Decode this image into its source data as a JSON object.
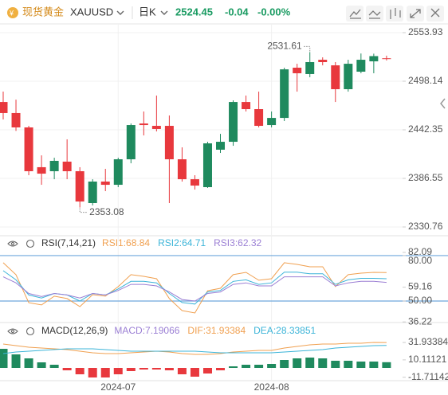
{
  "header": {
    "name": "现货黄金",
    "symbol": "XAUUSD",
    "period": "日K",
    "price": "2524.45",
    "change": "-0.04",
    "change_pct": "-0.00%"
  },
  "chart_data": [
    {
      "type": "candlestick",
      "categories": [
        null,
        null,
        null,
        null,
        null,
        null,
        null,
        null,
        null,
        "2024-07",
        null,
        null,
        null,
        null,
        null,
        null,
        null,
        null,
        null,
        null,
        null,
        "2024-08",
        null,
        null,
        null,
        null,
        null,
        null,
        null,
        null,
        null
      ],
      "open": [
        2474.3,
        2461.6,
        2445.1,
        2399.4,
        2394.8,
        2405.8,
        2394.8,
        2358.2,
        2382.9,
        2379.2,
        2408.5,
        2449.6,
        2446.9,
        2446.9,
        2408.5,
        2385.6,
        2376.5,
        2419.5,
        2428.6,
        2474.3,
        2466.1,
        2447.8,
        2456.0,
        2513.7,
        2506.4,
        2522.8,
        2516.4,
        2489.0,
        2509.1,
        2521.0,
        2524.49
      ],
      "high": [
        2486.2,
        2477.0,
        2446.9,
        2413.0,
        2410.3,
        2431.4,
        2399.4,
        2385.6,
        2397.5,
        2410.3,
        2449.6,
        2463.4,
        2481.7,
        2458.8,
        2422.2,
        2390.2,
        2428.6,
        2437.7,
        2476.2,
        2481.7,
        2486.2,
        2463.4,
        2513.7,
        2518.2,
        2531.61,
        2525.6,
        2520.1,
        2522.8,
        2530.0,
        2529.8,
        2527.5
      ],
      "low": [
        2454.2,
        2441.1,
        2390.2,
        2379.2,
        2385.6,
        2385.6,
        2353.08,
        2355.5,
        2371.9,
        2376.5,
        2403.9,
        2435.9,
        2440.5,
        2358.2,
        2382.9,
        2373.7,
        2375.6,
        2415.8,
        2424.0,
        2463.4,
        2445.1,
        2445.1,
        2452.4,
        2486.2,
        2502.7,
        2516.4,
        2474.3,
        2486.2,
        2507.3,
        2507.3,
        2522.0
      ],
      "close": [
        2461.6,
        2445.1,
        2394.8,
        2392.0,
        2406.7,
        2394.8,
        2360.0,
        2382.9,
        2379.2,
        2408.5,
        2447.8,
        2447.8,
        2443.3,
        2408.5,
        2385.6,
        2378.3,
        2426.8,
        2428.6,
        2474.3,
        2466.1,
        2446.9,
        2456.0,
        2511.8,
        2507.3,
        2520.1,
        2520.1,
        2489.0,
        2518.2,
        2522.8,
        2527.0,
        2524.45
      ],
      "up_color": "#1f8a5e",
      "down_color": "#e8383d",
      "ylim": [
        2320.7,
        2564.0
      ],
      "yticks": [
        2553.93,
        2498.14,
        2442.35,
        2386.55,
        2330.76
      ],
      "grid": true
    },
    {
      "type": "line",
      "title": "RSI(7,14,21)",
      "series": [
        {
          "name": "RSI1:68.84",
          "color": "#f0a050",
          "values": [
            75.3,
            67.4,
            48.9,
            47.4,
            53.2,
            51.6,
            46.3,
            54.2,
            53.2,
            59.5,
            67.4,
            66.3,
            64.7,
            51.6,
            43.7,
            42.1,
            56.8,
            58.4,
            67.4,
            68.9,
            63.7,
            64.7,
            75.3,
            74.2,
            72.6,
            72.6,
            59.5,
            67.4,
            68.4,
            68.9,
            68.84
          ]
        },
        {
          "name": "RSI2:64.71",
          "color": "#3cb4d8",
          "values": [
            70,
            64,
            54,
            52,
            55,
            54,
            50,
            55,
            54,
            58,
            63,
            63,
            62,
            55,
            49,
            48,
            56,
            57,
            63,
            64,
            61,
            62,
            69,
            69,
            68,
            68,
            61,
            64,
            65,
            65,
            64.71
          ]
        },
        {
          "name": "RSI3:62.32",
          "color": "#9b7fd4",
          "values": [
            66,
            62,
            55,
            53,
            55,
            54,
            52,
            55,
            54,
            57,
            61,
            61,
            60,
            56,
            51,
            50,
            55,
            56,
            61,
            62,
            60,
            60,
            66,
            66,
            66,
            66,
            60,
            62,
            63,
            63,
            62.32
          ]
        }
      ],
      "ylim": [
        35.8,
        91.0
      ],
      "yticks": [
        {
          "value": 80,
          "label": "80.00",
          "line": true
        },
        82.09,
        59.16,
        {
          "value": 50,
          "label": "50.00",
          "line": true
        },
        36.22
      ],
      "line_color": "#6fa8dc"
    },
    {
      "type": "macd",
      "title": "MACD(12,26,9)",
      "histogram": {
        "name": "MACD:7.19066",
        "color": "#9b7fd4",
        "pos_color": "#1f8a5e",
        "neg_color": "#e8383d",
        "values": [
          24,
          17,
          12,
          7,
          4,
          -3,
          -8,
          -12,
          -12,
          -8,
          -4,
          -2,
          -2,
          -3,
          -8,
          -11,
          -7,
          -3,
          2,
          4,
          4,
          5,
          10,
          12,
          13,
          12,
          9,
          9,
          8,
          8,
          7.19066
        ]
      },
      "series": [
        {
          "name": "DIF:31.93384",
          "color": "#f0a050",
          "values": [
            30,
            28,
            26,
            25,
            24,
            23,
            21,
            19,
            18,
            18,
            19,
            20,
            21,
            20,
            18,
            17,
            17,
            18,
            20,
            21,
            22,
            22,
            25,
            27,
            29,
            30,
            30,
            31,
            31,
            32,
            31.93384
          ]
        },
        {
          "name": "DEA:28.33851",
          "color": "#3cb4d8",
          "values": [
            18,
            20,
            21,
            22,
            23,
            24,
            24,
            24,
            23,
            22,
            21,
            21,
            21,
            21,
            21,
            21,
            20,
            19,
            19,
            19,
            19,
            19,
            20,
            21,
            22,
            23,
            25,
            26,
            27,
            28,
            28.33851
          ]
        }
      ],
      "ylim": [
        -16,
        57
      ],
      "yticks": [
        31.93384,
        10.11121,
        -11.71142
      ]
    }
  ]
}
